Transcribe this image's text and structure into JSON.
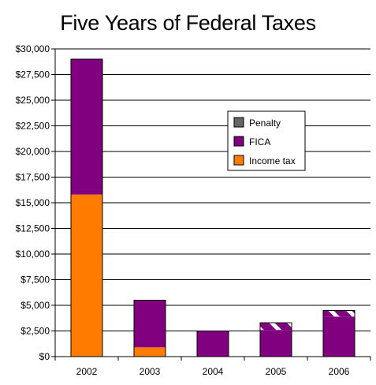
{
  "chart_data": {
    "type": "bar",
    "stacked": true,
    "title": "Five Years of Federal Taxes",
    "categories": [
      "2002",
      "2003",
      "2004",
      "2005",
      "2006"
    ],
    "series": [
      {
        "name": "Income tax",
        "values": [
          15800,
          900,
          0,
          0,
          0
        ],
        "color": "#ff7c00",
        "pattern": "solid"
      },
      {
        "name": "FICA",
        "values": [
          13200,
          4600,
          2500,
          2600,
          3900
        ],
        "color": "#800080",
        "pattern": "solid"
      },
      {
        "name": "Penalty",
        "values": [
          0,
          0,
          0,
          700,
          600
        ],
        "color": "#800080",
        "pattern": "hatched"
      }
    ],
    "legend_order": [
      "Penalty",
      "FICA",
      "Income tax"
    ],
    "legend_colors": {
      "Penalty": "#666666",
      "FICA": "#800080",
      "Income tax": "#ff7c00"
    },
    "legend_position": "right",
    "ylim": [
      0,
      30000
    ],
    "ytick_step": 2500,
    "yticks": [
      "$0",
      "$2,500",
      "$5,000",
      "$7,500",
      "$10,000",
      "$12,500",
      "$15,000",
      "$17,500",
      "$20,000",
      "$22,500",
      "$25,000",
      "$27,500",
      "$30,000"
    ],
    "grid": true,
    "xlabel": "",
    "ylabel": ""
  }
}
